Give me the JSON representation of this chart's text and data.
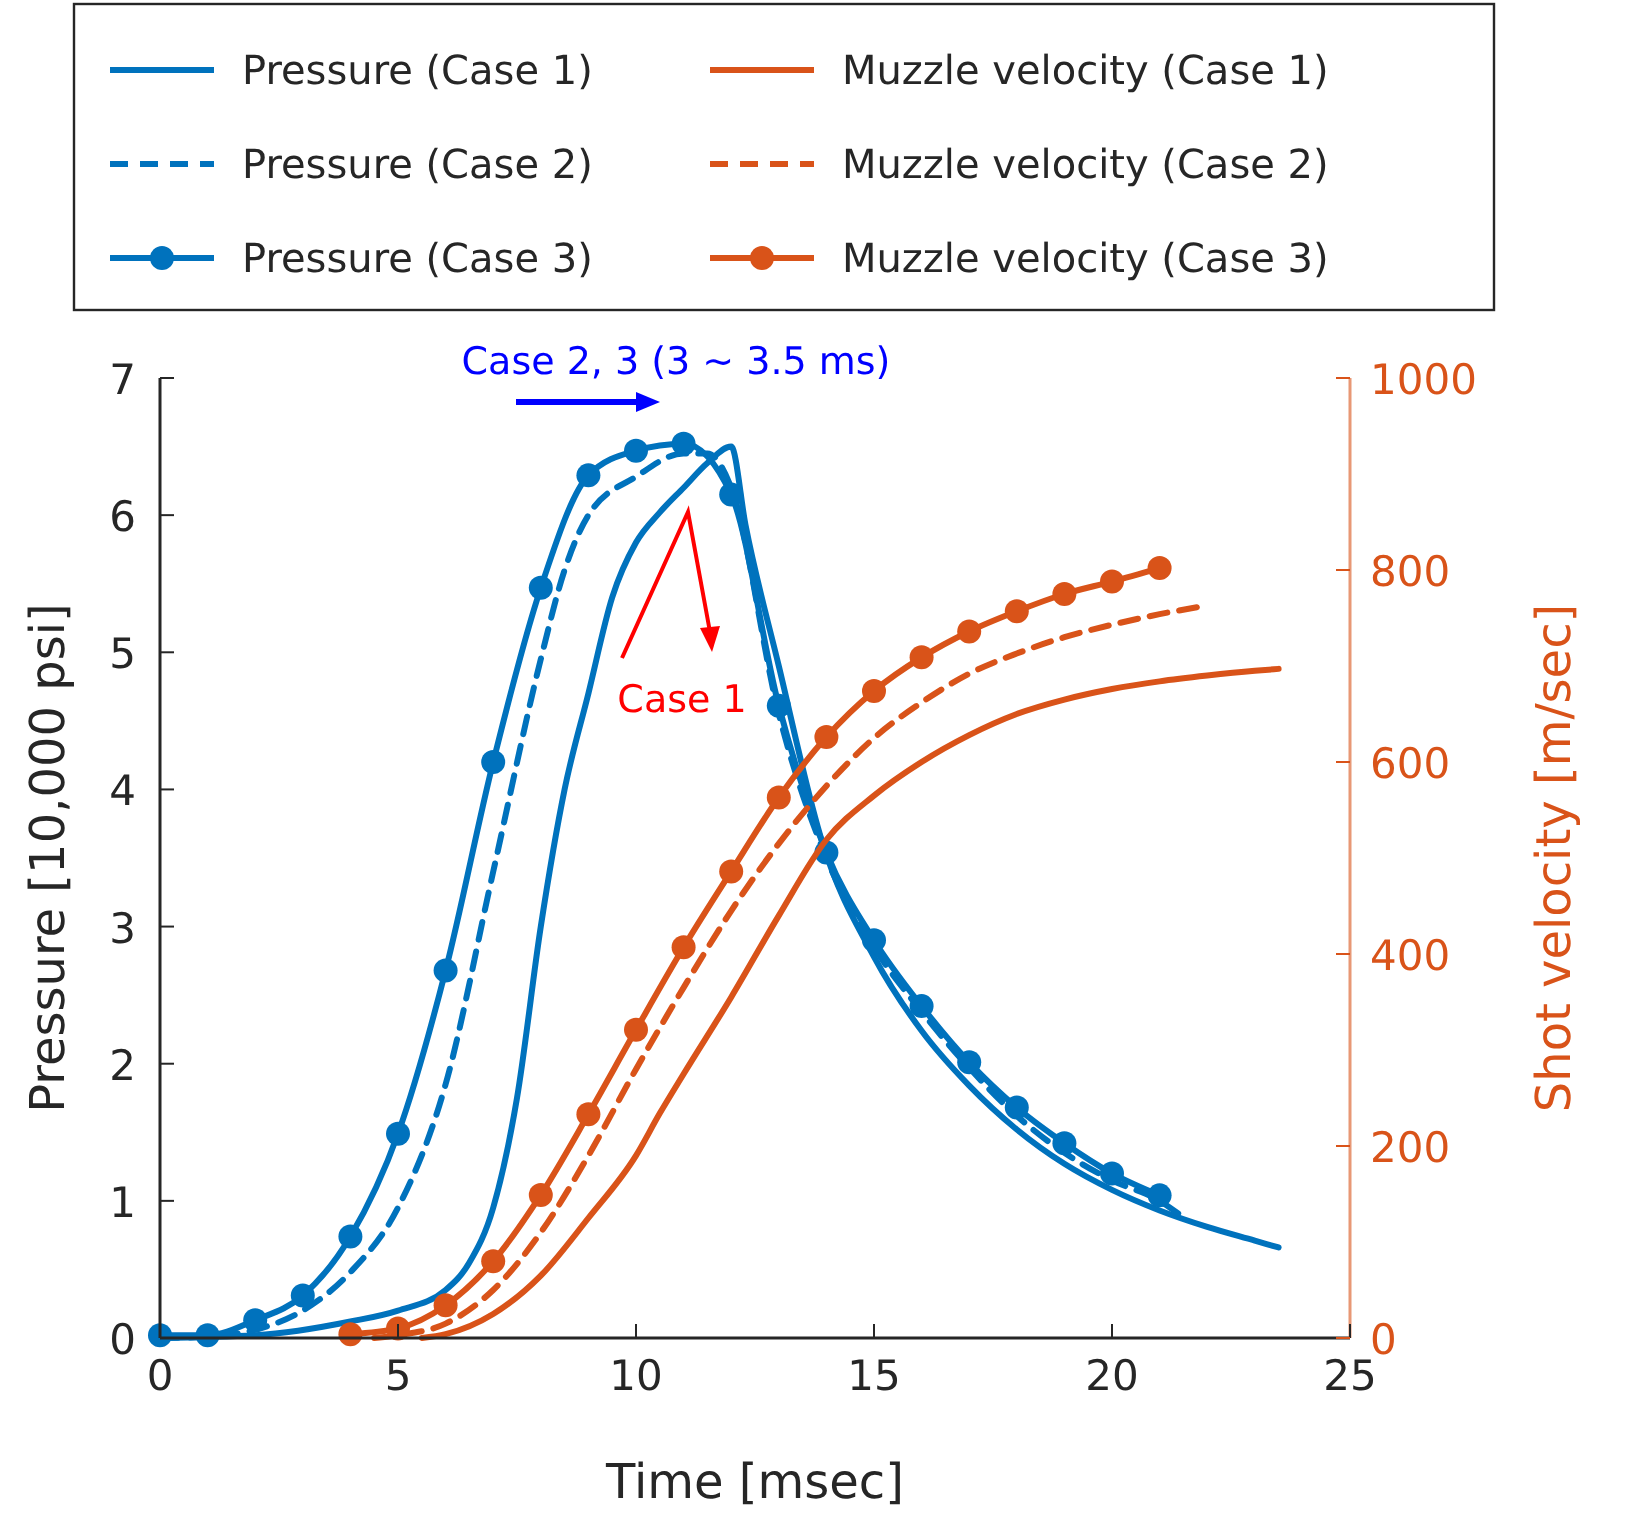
{
  "chart_data": {
    "type": "line",
    "xlabel": "Time [msec]",
    "ylabel": "Pressure [10,000 psi]",
    "y2label": "Shot velocity [m/sec]",
    "xlim": [
      0,
      25
    ],
    "xticks": [
      0,
      5,
      10,
      15,
      20,
      25
    ],
    "ylim": [
      0,
      7
    ],
    "yticks": [
      0,
      1,
      2,
      3,
      4,
      5,
      6,
      7
    ],
    "y2lim": [
      0,
      1000
    ],
    "y2ticks": [
      0,
      200,
      400,
      600,
      800,
      1000
    ],
    "grid": false,
    "legend": "top",
    "annotations": [
      "Case 2, 3 (3 ~ 3.5 ms)",
      "Case 1"
    ],
    "series": [
      {
        "name": "Pressure (Case 1)",
        "color": "#0072bd",
        "line_style": "solid",
        "marker": "none",
        "x": [
          0,
          2,
          4,
          5,
          6,
          6.5,
          7,
          7.5,
          8,
          8.5,
          9,
          9.5,
          10,
          10.5,
          11,
          11.5,
          12,
          12.3,
          13,
          13.9,
          15,
          16,
          17,
          18,
          19,
          20,
          21,
          22,
          23,
          23.5
        ],
        "values": [
          0,
          0.02,
          0.12,
          0.2,
          0.35,
          0.55,
          0.95,
          1.75,
          3.0,
          4.0,
          4.7,
          5.4,
          5.8,
          6.02,
          6.2,
          6.38,
          6.5,
          5.93,
          4.9,
          3.63,
          2.78,
          2.24,
          1.84,
          1.52,
          1.27,
          1.08,
          0.93,
          0.81,
          0.71,
          0.66
        ]
      },
      {
        "name": "Pressure (Case 2)",
        "color": "#0072bd",
        "line_style": "dashed",
        "marker": "none",
        "x": [
          0,
          1,
          2,
          3,
          4,
          5,
          6,
          7,
          8,
          8.5,
          9,
          10,
          11,
          11.5,
          12,
          13,
          14,
          15,
          16,
          17,
          18,
          19,
          20,
          21,
          21.5
        ],
        "values": [
          0,
          0.01,
          0.06,
          0.2,
          0.48,
          0.95,
          1.85,
          3.4,
          4.95,
          5.6,
          6.0,
          6.28,
          6.45,
          6.45,
          6.2,
          4.55,
          3.5,
          2.85,
          2.38,
          1.97,
          1.62,
          1.35,
          1.15,
          1.0,
          0.88
        ]
      },
      {
        "name": "Pressure (Case 3)",
        "color": "#0072bd",
        "line_style": "solid",
        "marker": "circle",
        "x": [
          0,
          1,
          2,
          3,
          4,
          5,
          6,
          7,
          8,
          9,
          10,
          11,
          12,
          13,
          14,
          15,
          16,
          17,
          18,
          19,
          20,
          21
        ],
        "values": [
          0.02,
          0.02,
          0.13,
          0.31,
          0.74,
          1.49,
          2.68,
          4.2,
          5.47,
          6.29,
          6.47,
          6.52,
          6.15,
          4.61,
          3.54,
          2.9,
          2.42,
          2.01,
          1.68,
          1.42,
          1.2,
          1.04
        ]
      },
      {
        "name": "Muzzle velocity (Case 1)",
        "color": "#d95319",
        "line_style": "solid",
        "marker": "none",
        "axis": "y2",
        "x": [
          5.5,
          6,
          7,
          8,
          9,
          10,
          10.5,
          11,
          12,
          13,
          14,
          15,
          16,
          17,
          18,
          19,
          20,
          21,
          22,
          23,
          23.5
        ],
        "values": [
          0,
          4,
          25,
          65,
          125,
          190,
          234,
          275,
          355,
          440,
          519,
          565,
          600,
          628,
          650,
          665,
          676,
          684,
          690,
          695,
          697
        ]
      },
      {
        "name": "Muzzle velocity (Case 2)",
        "color": "#d95319",
        "line_style": "dashed",
        "marker": "none",
        "axis": "y2",
        "x": [
          4.5,
          5,
          6,
          7,
          8,
          9,
          10,
          11,
          12,
          13,
          14,
          15,
          16,
          17,
          18,
          19,
          20,
          21,
          22
        ],
        "values": [
          0,
          3,
          15,
          50,
          110,
          190,
          280,
          365,
          445,
          515,
          575,
          625,
          662,
          692,
          713,
          730,
          743,
          754,
          763
        ]
      },
      {
        "name": "Muzzle velocity (Case 3)",
        "color": "#d95319",
        "line_style": "solid",
        "marker": "circle",
        "axis": "y2",
        "x": [
          4,
          5,
          6,
          7,
          8,
          9,
          10,
          11,
          12,
          13,
          14,
          15,
          16,
          17,
          18,
          19,
          20,
          21
        ],
        "values": [
          4,
          10,
          34,
          80,
          149,
          233,
          321,
          407,
          486,
          563,
          626,
          674,
          709,
          736,
          757,
          775,
          788,
          802
        ]
      }
    ]
  }
}
